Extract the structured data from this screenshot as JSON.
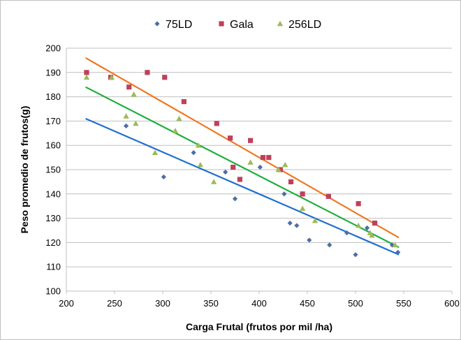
{
  "chart_data": {
    "type": "scatter",
    "title": "",
    "xlabel": "Carga Frutal (frutos por mil /ha)",
    "ylabel": "Peso promedio de frutos(g)",
    "xlim": [
      200,
      600
    ],
    "ylim": [
      100,
      200
    ],
    "xticks": [
      200,
      250,
      300,
      350,
      400,
      450,
      500,
      550,
      600
    ],
    "yticks": [
      100,
      110,
      120,
      130,
      140,
      150,
      160,
      170,
      180,
      190,
      200
    ],
    "grid": "horizontal",
    "legend_position": "top",
    "series": [
      {
        "name": "75LD",
        "marker": "diamond",
        "color": "#4a6fa5",
        "points": [
          [
            262,
            168
          ],
          [
            301,
            147
          ],
          [
            332,
            157
          ],
          [
            365,
            149
          ],
          [
            375,
            138
          ],
          [
            401,
            151
          ],
          [
            426,
            140
          ],
          [
            432,
            128
          ],
          [
            439,
            127
          ],
          [
            452,
            121
          ],
          [
            473,
            119
          ],
          [
            491,
            124
          ],
          [
            500,
            115
          ],
          [
            512,
            126
          ],
          [
            538,
            119
          ],
          [
            544,
            116
          ]
        ],
        "trendline": {
          "color": "#1f6fcf",
          "x": [
            220,
            545
          ],
          "y": [
            171,
            115
          ]
        }
      },
      {
        "name": "Gala",
        "marker": "square",
        "color": "#c0405a",
        "points": [
          [
            221,
            190
          ],
          [
            246,
            188
          ],
          [
            265,
            184
          ],
          [
            284,
            190
          ],
          [
            302,
            188
          ],
          [
            322,
            178
          ],
          [
            356,
            169
          ],
          [
            370,
            163
          ],
          [
            373,
            151
          ],
          [
            380,
            146
          ],
          [
            391,
            162
          ],
          [
            404,
            155
          ],
          [
            410,
            155
          ],
          [
            422,
            150
          ],
          [
            433,
            145
          ],
          [
            445,
            140
          ],
          [
            472,
            139
          ],
          [
            503,
            136
          ],
          [
            520,
            128
          ]
        ],
        "trendline": {
          "color": "#f07820",
          "x": [
            220,
            545
          ],
          "y": [
            196,
            122
          ]
        }
      },
      {
        "name": "256LD",
        "marker": "triangle",
        "color": "#9bbb59",
        "points": [
          [
            221,
            188
          ],
          [
            247,
            188
          ],
          [
            262,
            172
          ],
          [
            270,
            181
          ],
          [
            272,
            169
          ],
          [
            292,
            157
          ],
          [
            313,
            166
          ],
          [
            317,
            171
          ],
          [
            337,
            160
          ],
          [
            339,
            152
          ],
          [
            353,
            145
          ],
          [
            391,
            153
          ],
          [
            420,
            150
          ],
          [
            427,
            152
          ],
          [
            445,
            134
          ],
          [
            458,
            129
          ],
          [
            503,
            127
          ],
          [
            515,
            124
          ],
          [
            517,
            123
          ],
          [
            541,
            119
          ]
        ],
        "trendline": {
          "color": "#1fae3f",
          "x": [
            220,
            545
          ],
          "y": [
            184,
            118
          ]
        }
      }
    ]
  }
}
